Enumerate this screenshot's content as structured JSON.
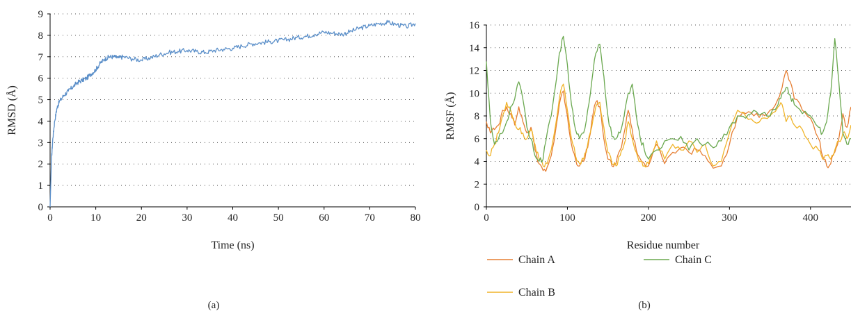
{
  "chart_data": [
    {
      "type": "line",
      "panel_label": "(a)",
      "xlabel": "Time (ns)",
      "ylabel": "RMSD (Å)",
      "xlim": [
        0,
        80
      ],
      "ylim": [
        0,
        9
      ],
      "xticks": [
        0,
        10,
        20,
        30,
        40,
        50,
        60,
        70,
        80
      ],
      "yticks": [
        0,
        1,
        2,
        3,
        4,
        5,
        6,
        7,
        8,
        9
      ],
      "grid": "horizontal dotted",
      "legend": "none",
      "series": [
        {
          "color": "#5b8fc9",
          "x": [
            0,
            0.3,
            0.6,
            1,
            1.5,
            2,
            3,
            4,
            5,
            6,
            7,
            8,
            9,
            10,
            11,
            12,
            13,
            14,
            15,
            16,
            18,
            20,
            22,
            24,
            26,
            28,
            30,
            32,
            34,
            36,
            38,
            40,
            42,
            44,
            46,
            48,
            50,
            52,
            54,
            56,
            58,
            60,
            62,
            64,
            66,
            68,
            70,
            72,
            74,
            76,
            78,
            80
          ],
          "y": [
            0,
            2.2,
            3.2,
            4.0,
            4.6,
            4.9,
            5.2,
            5.4,
            5.6,
            5.8,
            5.9,
            6.0,
            6.2,
            6.4,
            6.7,
            6.9,
            7.0,
            7.0,
            6.95,
            7.0,
            6.9,
            6.85,
            6.95,
            7.1,
            7.2,
            7.25,
            7.3,
            7.25,
            7.2,
            7.3,
            7.35,
            7.4,
            7.5,
            7.6,
            7.65,
            7.7,
            7.75,
            7.8,
            7.9,
            7.95,
            8.05,
            8.15,
            8.1,
            8.05,
            8.2,
            8.35,
            8.45,
            8.55,
            8.6,
            8.5,
            8.4,
            8.55
          ]
        }
      ]
    },
    {
      "type": "line",
      "panel_label": "(b)",
      "xlabel": "Residue number",
      "ylabel": "RMSF (Å)",
      "xlim": [
        0,
        450
      ],
      "ylim": [
        0,
        16
      ],
      "xticks": [
        0,
        100,
        200,
        300,
        400
      ],
      "yticks": [
        0,
        2,
        4,
        6,
        8,
        10,
        12,
        14,
        16
      ],
      "grid": "horizontal dotted",
      "legend": "bottom",
      "series": [
        {
          "name": "Chain A",
          "color": "#e67e32",
          "x": [
            0,
            5,
            10,
            15,
            20,
            25,
            30,
            35,
            40,
            45,
            50,
            55,
            60,
            65,
            70,
            75,
            80,
            85,
            90,
            95,
            100,
            105,
            110,
            115,
            120,
            125,
            130,
            135,
            140,
            145,
            150,
            155,
            160,
            165,
            170,
            175,
            180,
            185,
            190,
            195,
            200,
            210,
            220,
            230,
            240,
            250,
            260,
            270,
            280,
            290,
            300,
            310,
            320,
            330,
            340,
            350,
            360,
            365,
            370,
            375,
            380,
            390,
            400,
            410,
            415,
            420,
            425,
            430,
            435,
            440,
            445,
            450
          ],
          "y": [
            7.5,
            6.5,
            6.8,
            7.2,
            8.5,
            8.8,
            8.2,
            7.2,
            8.8,
            7.5,
            6.5,
            7.0,
            5.0,
            3.8,
            3.2,
            3.5,
            4.5,
            6.5,
            9.0,
            10.2,
            8.0,
            5.5,
            4.2,
            3.6,
            4.0,
            5.2,
            7.5,
            9.2,
            8.8,
            6.0,
            4.2,
            3.6,
            3.8,
            5.0,
            6.5,
            8.5,
            6.8,
            5.0,
            4.2,
            3.8,
            3.6,
            5.5,
            3.8,
            4.8,
            5.2,
            4.8,
            5.0,
            4.5,
            3.4,
            3.6,
            5.5,
            8.0,
            8.2,
            8.0,
            8.2,
            8.5,
            9.5,
            10.5,
            12.0,
            11.0,
            9.5,
            8.5,
            7.8,
            6.0,
            4.5,
            3.6,
            3.8,
            4.8,
            6.0,
            8.2,
            7.0,
            8.8
          ]
        },
        {
          "name": "Chain B",
          "color": "#f0b429",
          "x": [
            0,
            5,
            10,
            15,
            20,
            25,
            30,
            35,
            40,
            45,
            50,
            55,
            60,
            65,
            70,
            75,
            80,
            85,
            90,
            95,
            100,
            105,
            110,
            115,
            120,
            125,
            130,
            135,
            140,
            145,
            150,
            155,
            160,
            165,
            170,
            175,
            180,
            185,
            190,
            195,
            200,
            210,
            220,
            230,
            240,
            250,
            260,
            270,
            280,
            290,
            300,
            310,
            320,
            330,
            340,
            350,
            360,
            365,
            370,
            375,
            380,
            390,
            400,
            410,
            415,
            420,
            425,
            430,
            435,
            440,
            445,
            450
          ],
          "y": [
            5.0,
            4.5,
            5.5,
            6.5,
            8.0,
            9.2,
            8.5,
            7.5,
            6.8,
            6.5,
            6.0,
            6.8,
            5.5,
            4.2,
            3.6,
            3.8,
            5.0,
            7.0,
            9.5,
            10.8,
            8.5,
            6.0,
            4.5,
            3.8,
            4.2,
            5.5,
            7.0,
            8.8,
            9.2,
            7.0,
            4.8,
            3.8,
            3.6,
            4.5,
            5.5,
            7.5,
            6.0,
            4.8,
            4.0,
            3.6,
            3.8,
            5.8,
            4.2,
            5.5,
            5.0,
            5.8,
            4.8,
            5.5,
            3.6,
            4.0,
            6.5,
            8.5,
            8.0,
            7.5,
            7.8,
            8.0,
            8.8,
            9.0,
            7.5,
            8.0,
            7.2,
            6.8,
            5.5,
            5.0,
            4.2,
            4.5,
            4.2,
            5.0,
            5.8,
            6.5,
            6.0,
            7.2
          ]
        },
        {
          "name": "Chain C",
          "color": "#6aa84f",
          "x": [
            0,
            5,
            10,
            15,
            20,
            25,
            30,
            35,
            40,
            45,
            50,
            55,
            60,
            65,
            70,
            75,
            80,
            85,
            90,
            95,
            100,
            105,
            110,
            115,
            120,
            125,
            130,
            135,
            140,
            145,
            150,
            155,
            160,
            165,
            170,
            175,
            180,
            185,
            190,
            195,
            200,
            210,
            220,
            230,
            240,
            250,
            260,
            270,
            280,
            290,
            300,
            310,
            320,
            330,
            340,
            350,
            360,
            365,
            370,
            375,
            380,
            390,
            400,
            410,
            415,
            420,
            425,
            430,
            435,
            440,
            445,
            450
          ],
          "y": [
            12.8,
            7.5,
            5.5,
            6.0,
            6.5,
            7.5,
            8.8,
            9.5,
            11.0,
            9.5,
            7.0,
            6.0,
            4.5,
            4.0,
            4.2,
            6.5,
            8.0,
            10.5,
            13.5,
            15.0,
            12.5,
            9.0,
            6.8,
            6.0,
            6.5,
            8.5,
            11.0,
            13.5,
            14.3,
            11.5,
            8.0,
            6.2,
            6.0,
            6.5,
            8.0,
            10.0,
            10.8,
            8.0,
            6.0,
            5.0,
            4.2,
            5.0,
            5.8,
            6.0,
            6.2,
            5.0,
            6.0,
            5.5,
            5.2,
            5.8,
            7.0,
            8.0,
            7.8,
            8.5,
            8.2,
            8.0,
            9.0,
            10.0,
            10.5,
            9.8,
            9.0,
            8.2,
            8.0,
            7.0,
            6.5,
            7.5,
            10.0,
            14.8,
            11.0,
            6.5,
            5.5,
            6.0
          ]
        }
      ]
    }
  ]
}
